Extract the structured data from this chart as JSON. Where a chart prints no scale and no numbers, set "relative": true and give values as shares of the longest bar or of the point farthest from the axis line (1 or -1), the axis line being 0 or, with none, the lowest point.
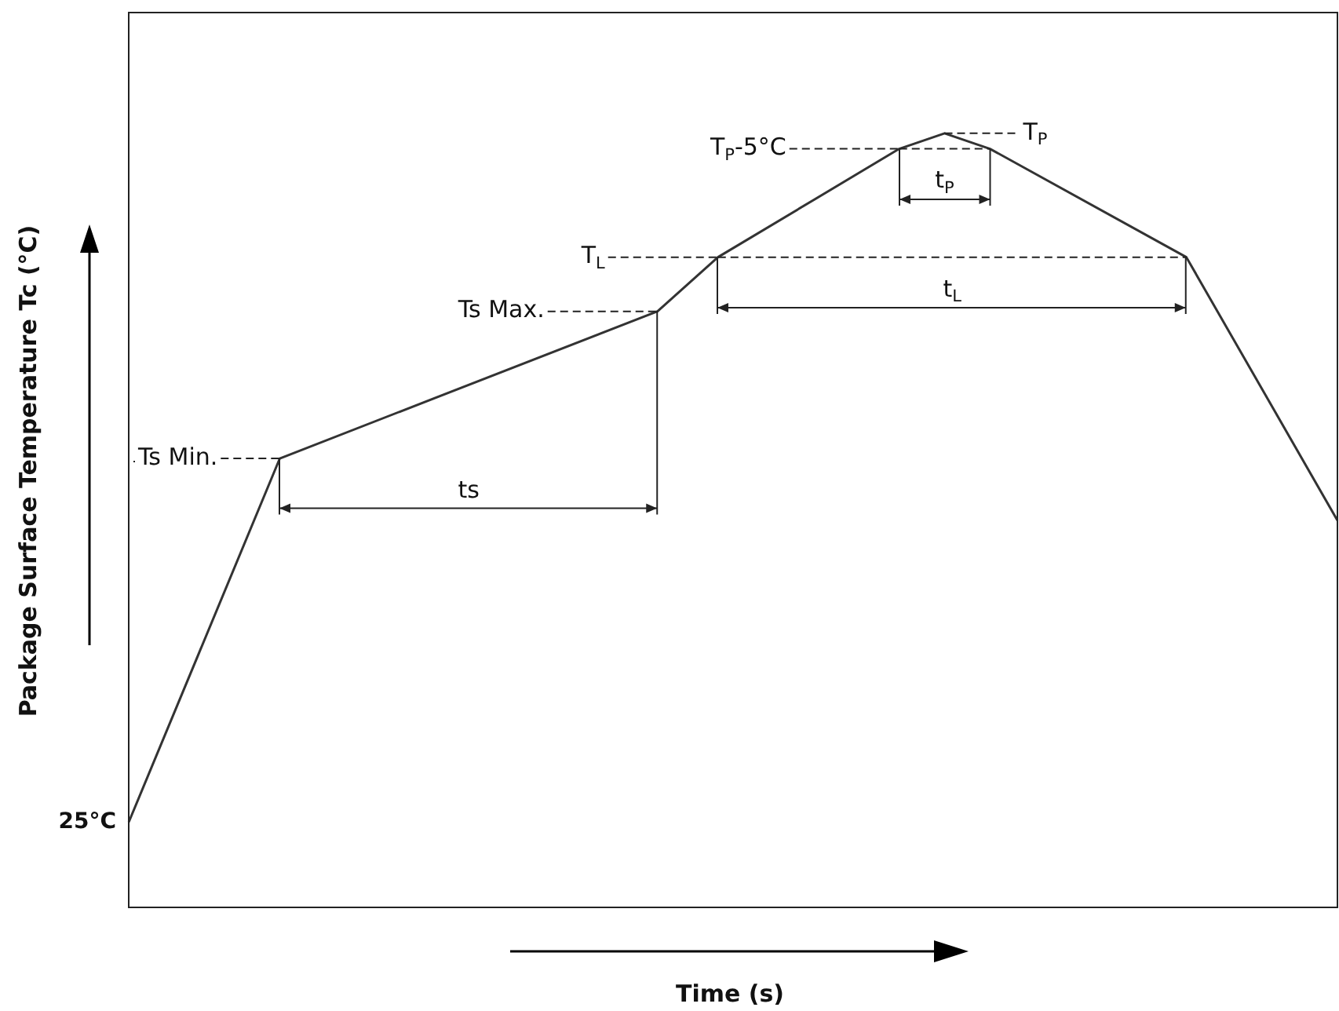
{
  "chart_data": {
    "type": "line",
    "xlabel": "Time (s)",
    "ylabel": "Package Surface Temperature Tc (°C)",
    "relative": true,
    "marker": "none",
    "categories": [
      null,
      null,
      null,
      null,
      null,
      null,
      null,
      null,
      null,
      null,
      null,
      null,
      null,
      null,
      null,
      null,
      null,
      null,
      null,
      null,
      null,
      null,
      null,
      null,
      null,
      null,
      null,
      null,
      null,
      null,
      null,
      null,
      null,
      null,
      null,
      null,
      null,
      null,
      null,
      null,
      null,
      null,
      null,
      null,
      null,
      null,
      null,
      null,
      null,
      null,
      null,
      null,
      null,
      null,
      null,
      null,
      null,
      null,
      null,
      null,
      null,
      null,
      null,
      null,
      null,
      null,
      null,
      null,
      null,
      null,
      null,
      null,
      null,
      null,
      null,
      null,
      null,
      null,
      null,
      null,
      null
    ],
    "series": [
      {
        "color": "#333333",
        "values": [
          0.11,
          null,
          null,
          null,
          null,
          null,
          null,
          null,
          null,
          null,
          0.58,
          null,
          null,
          null,
          null,
          null,
          null,
          null,
          null,
          null,
          null,
          null,
          null,
          null,
          null,
          null,
          null,
          null,
          null,
          null,
          null,
          null,
          null,
          null,
          null,
          0.77,
          null,
          null,
          null,
          0.84,
          null,
          null,
          null,
          null,
          null,
          null,
          null,
          null,
          null,
          null,
          null,
          0.98,
          null,
          null,
          1,
          null,
          null,
          0.98,
          null,
          null,
          null,
          null,
          null,
          null,
          null,
          null,
          null,
          null,
          null,
          null,
          0.84,
          null,
          null,
          null,
          null,
          null,
          null,
          null,
          null,
          null,
          0.5
        ]
      }
    ],
    "ref_lines": [
      {
        "axis": "y",
        "value": 0.58,
        "label": "Ts Min.",
        "line_style": "dashed"
      },
      {
        "axis": "y",
        "value": 0.77,
        "label": "Ts Max.",
        "line_style": "dashed"
      },
      {
        "axis": "y",
        "value": 0.84,
        "label": "T$_{L}$",
        "line_style": "dashed"
      },
      {
        "axis": "y",
        "value": 0.98,
        "label": "T$_{P}$-5°C",
        "line_style": "dashed"
      },
      {
        "axis": "y",
        "value": 1,
        "label": "T$_{P}$",
        "line_style": "dashed"
      }
    ],
    "annotations": [
      "ts",
      "t$_{L}$",
      "t$_{P}$",
      "25°C"
    ]
  }
}
